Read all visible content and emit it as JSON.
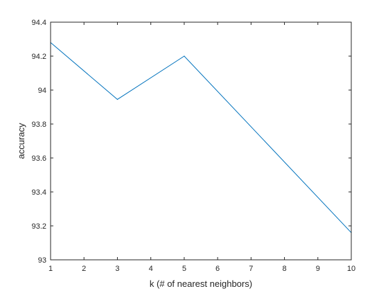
{
  "chart_data": {
    "type": "line",
    "title": "",
    "xlabel": "k (# of nearest neighbors)",
    "ylabel": "accuracy",
    "xlim": [
      1,
      10
    ],
    "ylim": [
      93,
      94.4
    ],
    "xticks": [
      "1",
      "2",
      "3",
      "4",
      "5",
      "6",
      "7",
      "8",
      "9",
      "10"
    ],
    "yticks": [
      "93",
      "93.2",
      "93.4",
      "93.6",
      "93.8",
      "94",
      "94.2",
      "94.4"
    ],
    "grid": false,
    "series": [
      {
        "color": "#0072bd",
        "x": [
          1,
          3,
          5,
          10
        ],
        "y": [
          94.28,
          93.945,
          94.2,
          93.16
        ]
      }
    ]
  }
}
